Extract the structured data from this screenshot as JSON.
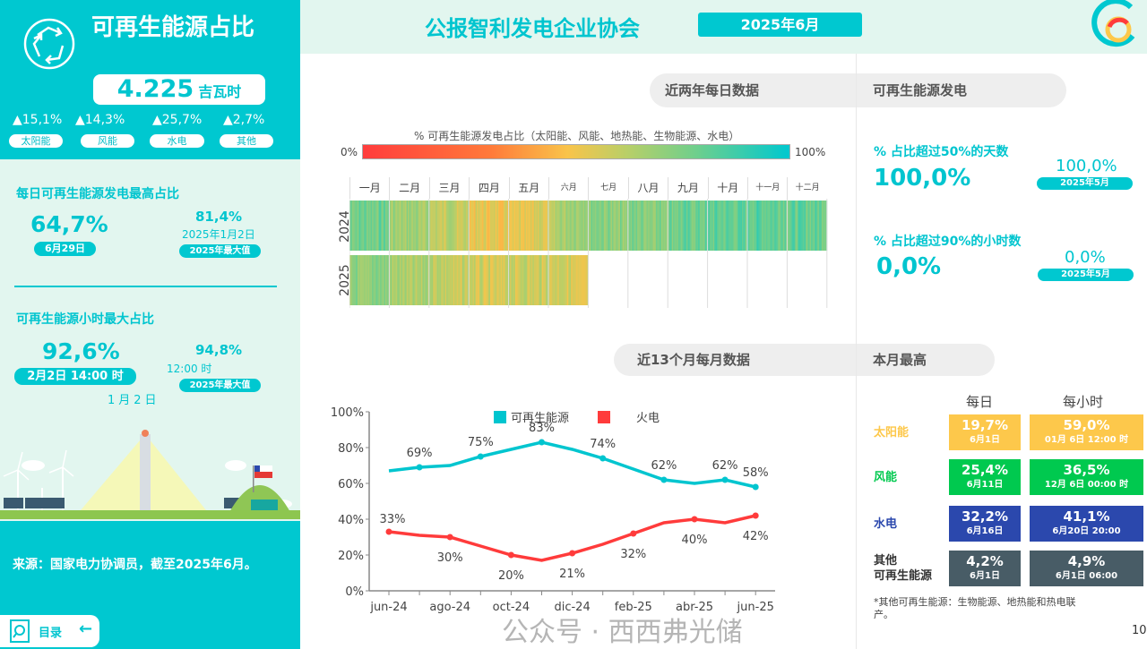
{
  "left": {
    "title": "可再生能源占比",
    "total_value": "4.225",
    "total_unit": "吉瓦时",
    "growth": [
      {
        "value": "▲15,1%",
        "label": "太阳能"
      },
      {
        "value": "▲14,3%",
        "label": "风能"
      },
      {
        "value": "▲25,7%",
        "label": "水电"
      },
      {
        "value": "▲2,7%",
        "label": "其他"
      }
    ],
    "daily": {
      "title": "每日可再生能源发电最高占比",
      "value": "64,7%",
      "date": "6月29日",
      "max_value": "81,4%",
      "max_date": "2025年1月2日",
      "max_label": "2025年最大值"
    },
    "hourly": {
      "title": "可再生能源小时最大占比",
      "value": "92,6%",
      "date": "2月2日 14:00 时",
      "overlap_text": "1月2日",
      "max_value": "94,8%",
      "max_date": "12:00 时",
      "max_label": "2025年最大值"
    },
    "source": "来源：国家电力协调员，截至2025年6月。",
    "toc_label": "目录"
  },
  "header": {
    "title": "公报智利发电企业协会",
    "date": "2025年6月"
  },
  "sections": {
    "daily_two_years": "近两年每日数据",
    "renewable_gen": "可再生能源发电",
    "monthly_13": "近13个月每月数据",
    "month_max": "本月最高"
  },
  "stats": [
    {
      "label": "% 占比超过50%的天数",
      "value": "100,0%",
      "prev_value": "100,0%",
      "prev_label": "2025年5月"
    },
    {
      "label": "% 占比超过90%的小时数",
      "value": "0,0%",
      "prev_value": "0,0%",
      "prev_label": "2025年5月"
    }
  ],
  "max_table": {
    "col_daily": "每日",
    "col_hourly": "每小时",
    "rows": [
      {
        "label": "太阳能",
        "color": "#fdc84b",
        "daily": "19,7%",
        "daily_date": "6月1日",
        "hourly": "59,0%",
        "hourly_date": "01月 6日 12:00 时"
      },
      {
        "label": "风能",
        "color": "#00c94f",
        "daily": "25,4%",
        "daily_date": "6月11日",
        "hourly": "36,5%",
        "hourly_date": "12月 6日 00:00 时"
      },
      {
        "label": "水电",
        "color": "#2b48ad",
        "daily": "32,2%",
        "daily_date": "6月16日",
        "hourly": "41,1%",
        "hourly_date": "6月20日 20:00"
      },
      {
        "label": "其他\n可再生能源",
        "color": "#485c66",
        "daily": "4,2%",
        "daily_date": "6月1日",
        "hourly": "4,9%",
        "hourly_date": "6月1日 06:00"
      }
    ],
    "footnote": "*其他可再生能源：生物能源、地热能和热电联产。"
  },
  "watermark": "公众号 · 西西弗光储",
  "page_number": "10",
  "chart_data": [
    {
      "type": "heatmap",
      "title": "% 可再生能源发电占比（太阳能、风能、地热能、生物能源、水电）",
      "scale_min_label": "0%",
      "scale_max_label": "100%",
      "months": [
        "一月",
        "二月",
        "三月",
        "四月",
        "五月",
        "六月",
        "七月",
        "八月",
        "九月",
        "十月",
        "十一月",
        "十二月"
      ],
      "years": [
        "2024",
        "2025"
      ],
      "monthly_avg_estimate": {
        "2024": [
          78,
          68,
          60,
          52,
          55,
          65,
          72,
          74,
          78,
          80,
          82,
          80
        ],
        "2025": [
          72,
          66,
          60,
          58,
          58,
          56,
          null,
          null,
          null,
          null,
          null,
          null
        ]
      }
    },
    {
      "type": "line",
      "x": [
        "jun-24",
        "jul-24",
        "ago-24",
        "sep-24",
        "oct-24",
        "nov-24",
        "dic-24",
        "ene-25",
        "feb-25",
        "mar-25",
        "abr-25",
        "may-25",
        "jun-25"
      ],
      "x_tick_labels": [
        "jun-24",
        "ago-24",
        "oct-24",
        "dic-24",
        "feb-25",
        "abr-25",
        "jun-25"
      ],
      "y_tick_labels": [
        "0%",
        "20%",
        "40%",
        "60%",
        "80%",
        "100%"
      ],
      "ylim": [
        0,
        100
      ],
      "legend": "top",
      "series": [
        {
          "name": "可再生能源",
          "color": "#00c5cf",
          "values": [
            67,
            69,
            70,
            75,
            79,
            83,
            79,
            74,
            68,
            62,
            60,
            62,
            58
          ],
          "labels": [
            null,
            "69%",
            null,
            "75%",
            null,
            "83%",
            null,
            "74%",
            null,
            "62%",
            null,
            "62%",
            "58%"
          ]
        },
        {
          "name": "火电",
          "color": "#ff3b3b",
          "values": [
            33,
            31,
            30,
            25,
            20,
            17,
            21,
            26,
            32,
            38,
            40,
            38,
            42
          ],
          "labels": [
            "33%",
            null,
            "30%",
            null,
            "20%",
            null,
            "21%",
            null,
            "32%",
            null,
            "40%",
            null,
            "42%"
          ]
        }
      ]
    }
  ]
}
